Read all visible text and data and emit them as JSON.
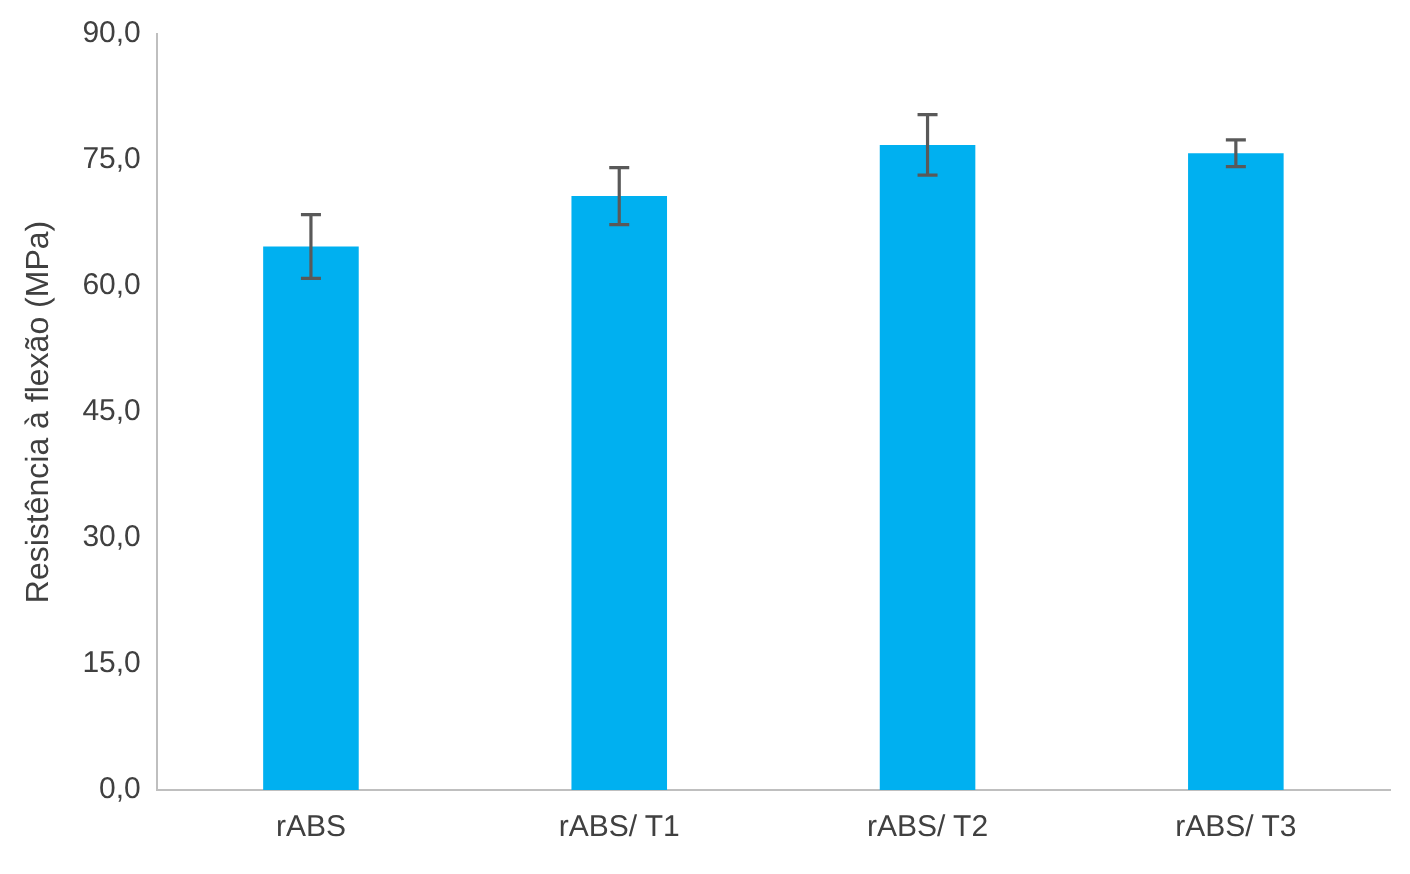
{
  "chart_data": {
    "type": "bar",
    "ylabel": "Resistência à flexão (MPa)",
    "categories": [
      "rABS",
      "rABS/ T1",
      "rABS/ T2",
      "rABS/ T3"
    ],
    "values": [
      64.7,
      70.7,
      76.8,
      75.8
    ],
    "color": "#00b0f0",
    "errors": [
      3.8,
      3.4,
      3.6,
      1.6
    ],
    "ylim": [
      0,
      90
    ],
    "yticks": [
      {
        "value": 0,
        "label": "0,0"
      },
      {
        "value": 15,
        "label": "15,0"
      },
      {
        "value": 30,
        "label": "30,0"
      },
      {
        "value": 45,
        "label": "45,0"
      },
      {
        "value": 60,
        "label": "60,0"
      },
      {
        "value": 75,
        "label": "75,0"
      },
      {
        "value": 90,
        "label": "90,0"
      }
    ],
    "grid": false,
    "legend": false
  }
}
